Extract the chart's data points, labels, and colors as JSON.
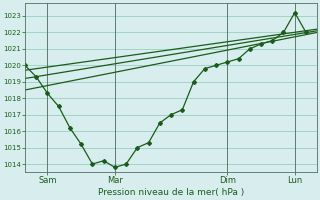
{
  "background_color": "#d8eeee",
  "grid_color": "#90c8b8",
  "line_color": "#1a5c1a",
  "xlabel": "Pression niveau de la mer( hPa )",
  "ylim": [
    1013.5,
    1023.8
  ],
  "yticks": [
    1014,
    1015,
    1016,
    1017,
    1018,
    1019,
    1020,
    1021,
    1022,
    1023
  ],
  "xlim": [
    0,
    52
  ],
  "day_positions": [
    4,
    16,
    36,
    48
  ],
  "day_labels": [
    "Sam",
    "Mar",
    "Dim",
    "Lun"
  ],
  "vline_positions": [
    4,
    16,
    36,
    48
  ],
  "series_jagged": {
    "x": [
      0,
      2,
      4,
      6,
      8,
      10,
      12,
      14,
      16,
      18,
      20,
      22,
      24,
      26,
      28,
      30,
      32,
      34,
      36,
      38,
      40,
      42,
      44,
      46,
      48,
      50
    ],
    "y": [
      1020.0,
      1019.3,
      1018.3,
      1017.5,
      1016.2,
      1015.2,
      1014.0,
      1014.2,
      1013.8,
      1014.0,
      1015.0,
      1015.3,
      1016.5,
      1017.0,
      1017.3,
      1019.0,
      1019.8,
      1020.0,
      1020.2,
      1020.4,
      1021.0,
      1021.3,
      1021.5,
      1022.0,
      1023.2,
      1022.0
    ]
  },
  "series_trend1": {
    "x": [
      0,
      52
    ],
    "y": [
      1018.5,
      1022.0
    ]
  },
  "series_trend2": {
    "x": [
      0,
      52
    ],
    "y": [
      1019.2,
      1022.1
    ]
  },
  "series_trend3": {
    "x": [
      0,
      52
    ],
    "y": [
      1019.7,
      1022.2
    ]
  }
}
